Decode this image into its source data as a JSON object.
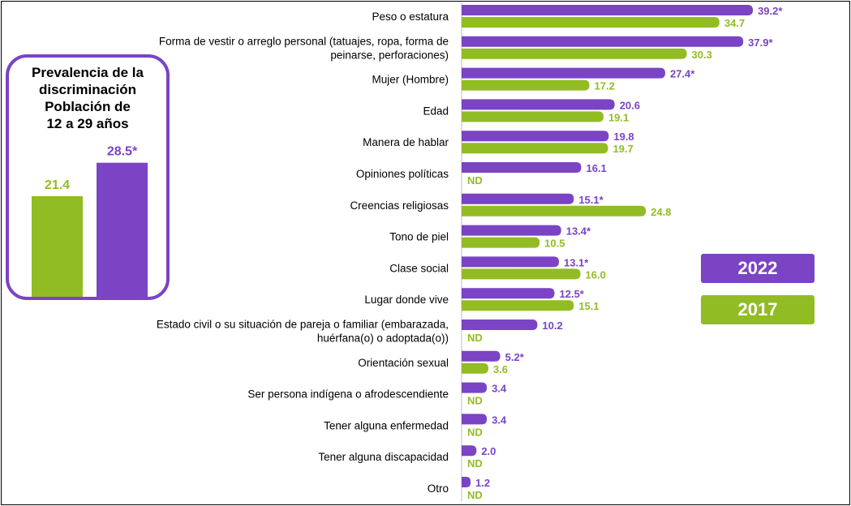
{
  "colors": {
    "series_2022": "#7a44c4",
    "series_2017": "#92bc24"
  },
  "legend": {
    "label_2022": "2022",
    "label_2017": "2017"
  },
  "inset": {
    "title_lines": [
      "Prevalencia de la",
      "discriminación",
      "Población de",
      "12 a 29 años"
    ]
  },
  "chart_data": [
    {
      "type": "bar",
      "orientation": "horizontal",
      "categories": [
        [
          "Peso o estatura"
        ],
        [
          "Forma de vestir o arreglo personal (tatuajes, ropa, forma de",
          "peinarse, perforaciones)"
        ],
        [
          "Mujer (Hombre)"
        ],
        [
          "Edad"
        ],
        [
          "Manera de hablar"
        ],
        [
          "Opiniones políticas"
        ],
        [
          "Creencias religiosas"
        ],
        [
          "Tono de piel"
        ],
        [
          "Clase social"
        ],
        [
          "Lugar donde vive"
        ],
        [
          "Estado civil o su situación de pareja o familiar (embarazada,",
          "huérfana(o) o adoptada(o))"
        ],
        [
          "Orientación  sexual"
        ],
        [
          "Ser persona indígena o afrodescendiente"
        ],
        [
          "Tener alguna enfermedad"
        ],
        [
          "Tener alguna discapacidad"
        ],
        [
          "Otro"
        ]
      ],
      "series": [
        {
          "name": "2022",
          "values": [
            39.2,
            37.9,
            27.4,
            20.6,
            19.8,
            16.1,
            15.1,
            13.4,
            13.1,
            12.5,
            10.2,
            5.2,
            3.4,
            3.4,
            2.0,
            1.2
          ],
          "labels": [
            "39.2*",
            "37.9*",
            "27.4*",
            "20.6",
            "19.8",
            "16.1",
            "15.1*",
            "13.4*",
            "13.1*",
            "12.5*",
            "10.2",
            "5.2*",
            "3.4",
            "3.4",
            "2.0",
            "1.2"
          ]
        },
        {
          "name": "2017",
          "values": [
            34.7,
            30.3,
            17.2,
            19.1,
            19.7,
            null,
            24.8,
            10.5,
            16.0,
            15.1,
            null,
            3.6,
            null,
            null,
            null,
            null
          ],
          "labels": [
            "34.7",
            "30.3",
            "17.2",
            "19.1",
            "19.7",
            "ND",
            "24.8",
            "10.5",
            "16.0",
            "15.1",
            "ND",
            "3.6",
            "ND",
            "ND",
            "ND",
            "ND"
          ]
        }
      ]
    },
    {
      "type": "bar",
      "categories": [
        "2017",
        "2022"
      ],
      "values": [
        21.4,
        28.5
      ],
      "labels": [
        "21.4",
        "28.5*"
      ]
    }
  ]
}
